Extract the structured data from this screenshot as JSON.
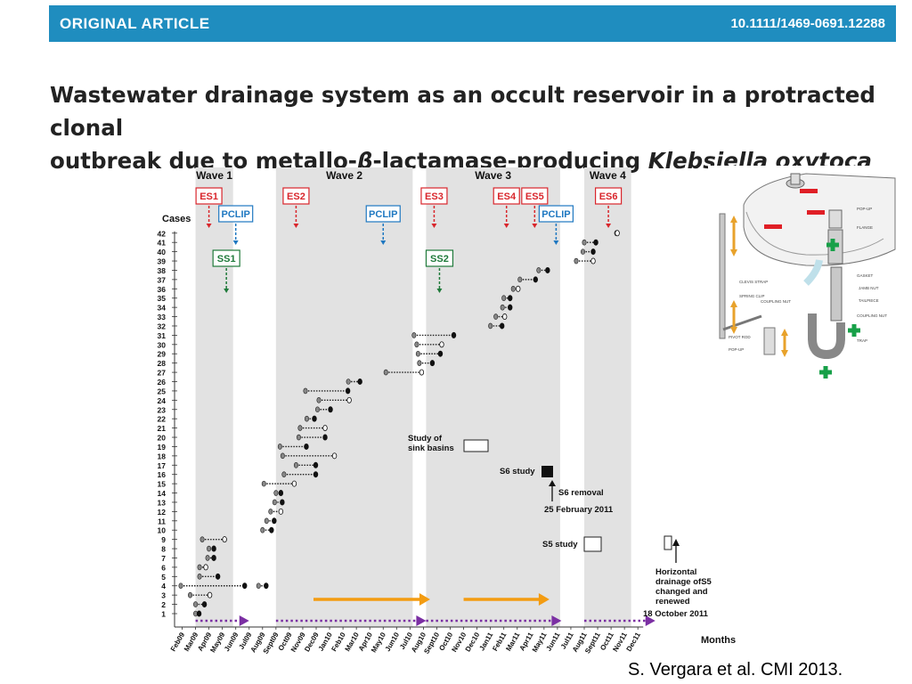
{
  "header": {
    "label": "ORIGINAL ARTICLE",
    "doi": "10.1111/1469-0691.12288"
  },
  "title": {
    "line1": "Wastewater drainage system as an occult reservoir in a protracted clonal",
    "line2_pre": "outbreak due to metallo-",
    "line2_beta": "β",
    "line2_mid": "-lactamase-producing ",
    "line2_species": "Klebsiella oxytoca"
  },
  "citation": "S. Vergara et al. CMI 2013.",
  "chart_data": {
    "type": "timeline",
    "ylabel": "Cases",
    "xlabel": "Months",
    "y_ticks": [
      1,
      2,
      3,
      4,
      5,
      6,
      7,
      8,
      9,
      10,
      11,
      12,
      13,
      14,
      15,
      16,
      17,
      18,
      19,
      20,
      21,
      22,
      23,
      24,
      25,
      26,
      27,
      28,
      29,
      30,
      31,
      32,
      33,
      34,
      35,
      36,
      37,
      38,
      39,
      40,
      41,
      42
    ],
    "months": [
      "Feb09",
      "Mar09",
      "Apr09",
      "May09",
      "Jun09",
      "Jul09",
      "Aug09",
      "Sept09",
      "Oct09",
      "Nov09",
      "Dec09",
      "Jan10",
      "Feb10",
      "Mar10",
      "Apr10",
      "May10",
      "Jun10",
      "Jul10",
      "Aug10",
      "Sept10",
      "Oct10",
      "Nov10",
      "Dec10",
      "Jan11",
      "Feb11",
      "Mar11",
      "Apr11",
      "May11",
      "Jun11",
      "Jul11",
      "Aug11",
      "Sept11",
      "Oct11",
      "Nov11",
      "Dec11"
    ],
    "waves": [
      {
        "label": "Wave 1",
        "start": 1.0,
        "end": 3.8
      },
      {
        "label": "Wave 2",
        "start": 7.0,
        "end": 17.2
      },
      {
        "label": "Wave 3",
        "start": 18.2,
        "end": 28.2
      },
      {
        "label": "Wave 4",
        "start": 30.0,
        "end": 33.5
      }
    ],
    "markers": [
      {
        "label": "ES1",
        "kind": "ES",
        "x": 2.0
      },
      {
        "label": "ES2",
        "kind": "ES",
        "x": 8.5
      },
      {
        "label": "ES3",
        "kind": "ES",
        "x": 18.8
      },
      {
        "label": "ES4",
        "kind": "ES",
        "x": 24.2
      },
      {
        "label": "ES5",
        "kind": "ES",
        "x": 26.3
      },
      {
        "label": "ES6",
        "kind": "ES",
        "x": 31.8
      },
      {
        "label": "PCLIP",
        "kind": "PCLIP",
        "x": 4.0
      },
      {
        "label": "PCLIP",
        "kind": "PCLIP",
        "x": 15.0
      },
      {
        "label": "PCLIP",
        "kind": "PCLIP",
        "x": 27.9
      },
      {
        "label": "SS1",
        "kind": "SS",
        "x": 3.3
      },
      {
        "label": "SS2",
        "kind": "SS",
        "x": 19.2
      }
    ],
    "cases": [
      {
        "case": 1,
        "start": 1.0,
        "end": 1.2
      },
      {
        "case": 2,
        "start": 1.0,
        "end": 1.6
      },
      {
        "case": 3,
        "start": 0.6,
        "end": 2.0
      },
      {
        "case": 4,
        "start": -0.1,
        "end": 4.6
      },
      {
        "case": 4,
        "start": 5.7,
        "end": 6.2
      },
      {
        "case": 5,
        "start": 1.3,
        "end": 2.6
      },
      {
        "case": 6,
        "start": 1.3,
        "end": 1.7
      },
      {
        "case": 7,
        "start": 1.9,
        "end": 2.3
      },
      {
        "case": 8,
        "start": 2.0,
        "end": 2.3
      },
      {
        "case": 9,
        "start": 1.5,
        "end": 3.1
      },
      {
        "case": 10,
        "start": 6.0,
        "end": 6.6
      },
      {
        "case": 11,
        "start": 6.3,
        "end": 6.8
      },
      {
        "case": 12,
        "start": 6.6,
        "end": 7.3
      },
      {
        "case": 13,
        "start": 6.9,
        "end": 7.4
      },
      {
        "case": 14,
        "start": 7.0,
        "end": 7.3
      },
      {
        "case": 15,
        "start": 6.1,
        "end": 8.3
      },
      {
        "case": 16,
        "start": 7.6,
        "end": 9.9
      },
      {
        "case": 17,
        "start": 8.5,
        "end": 9.9
      },
      {
        "case": 18,
        "start": 7.5,
        "end": 11.3
      },
      {
        "case": 19,
        "start": 7.3,
        "end": 9.2
      },
      {
        "case": 20,
        "start": 8.7,
        "end": 10.6
      },
      {
        "case": 21,
        "start": 8.8,
        "end": 10.6
      },
      {
        "case": 22,
        "start": 9.3,
        "end": 9.8
      },
      {
        "case": 23,
        "start": 10.1,
        "end": 11.0
      },
      {
        "case": 24,
        "start": 10.2,
        "end": 12.4
      },
      {
        "case": 25,
        "start": 9.2,
        "end": 12.3
      },
      {
        "case": 26,
        "start": 12.4,
        "end": 13.2
      },
      {
        "case": 27,
        "start": 15.2,
        "end": 17.8
      },
      {
        "case": 28,
        "start": 17.7,
        "end": 18.6
      },
      {
        "case": 29,
        "start": 17.6,
        "end": 19.2
      },
      {
        "case": 30,
        "start": 17.5,
        "end": 19.3
      },
      {
        "case": 31,
        "start": 17.3,
        "end": 20.2
      },
      {
        "case": 32,
        "start": 23.0,
        "end": 23.8
      },
      {
        "case": 33,
        "start": 23.4,
        "end": 24.0
      },
      {
        "case": 34,
        "start": 23.9,
        "end": 24.4
      },
      {
        "case": 35,
        "start": 24.0,
        "end": 24.4
      },
      {
        "case": 36,
        "start": 24.7,
        "end": 25.0
      },
      {
        "case": 37,
        "start": 25.2,
        "end": 26.3
      },
      {
        "case": 38,
        "start": 26.6,
        "end": 27.2
      },
      {
        "case": 39,
        "start": 29.4,
        "end": 30.6
      },
      {
        "case": 40,
        "start": 29.9,
        "end": 30.6
      },
      {
        "case": 41,
        "start": 30.0,
        "end": 30.8
      },
      {
        "case": 42,
        "start": 32.4,
        "end": 32.4
      }
    ]
  },
  "annotations": {
    "study_sink": "Study of\nsink basins",
    "s6_study": "S6 study",
    "s6_removal": "S6 removal",
    "s6_date": "25 February 2011",
    "s5_study": "S5 study",
    "horizontal": "Horizontal\ndrainage ofS5\nchanged and\nrenewed",
    "horizontal_date": "18 October 2011"
  },
  "sink_diagram_labels": [
    "POP-UP",
    "FLANGE",
    "GASKET",
    "JAMB NUT",
    "TAILPIECE",
    "COUPLING NUT",
    "TRAP",
    "CLEVIS STRAP",
    "SPRING CLIP",
    "COUPLING NUT",
    "PIVOT ROD",
    "POP-UP"
  ],
  "colors": {
    "banner": "#1f8dbf",
    "wave_band": "#e2e2e2",
    "es": "#d9262c",
    "pclip": "#1f78c1",
    "ss": "#1f7a3a",
    "orange_arrow": "#f39c12",
    "purple_arrow": "#7b2fa3",
    "minus_red": "#e01f26",
    "plus_green": "#17a048"
  }
}
